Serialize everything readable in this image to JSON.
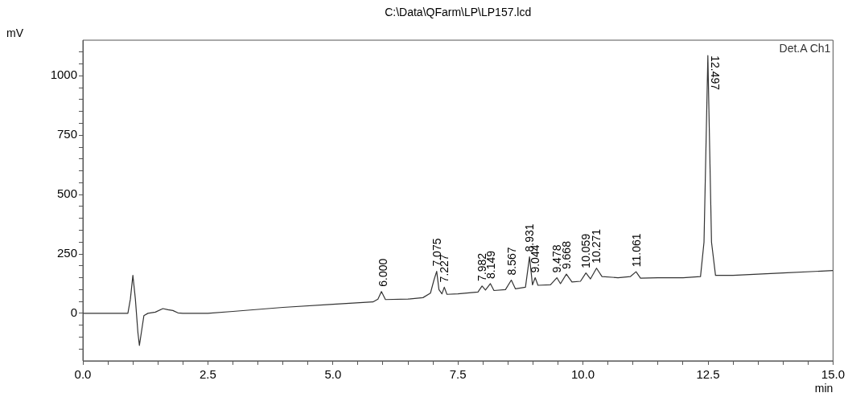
{
  "chart_data": {
    "type": "line",
    "title": "C:\\Data\\QFarm\\LP\\LP157.lcd",
    "xlabel": "min",
    "ylabel": "mV",
    "legend": "top right",
    "grid": false,
    "marker": "none",
    "line_style": "solid",
    "xlim": [
      0,
      15
    ],
    "xticks": [
      {
        "value": 0,
        "label": "0.0"
      },
      {
        "value": 0.5,
        "label": null
      },
      {
        "value": 1,
        "label": null
      },
      {
        "value": 1.5,
        "label": null
      },
      {
        "value": 2,
        "label": null
      },
      {
        "value": 2.5,
        "label": "2.5"
      },
      {
        "value": 3,
        "label": null
      },
      {
        "value": 3.5,
        "label": null
      },
      {
        "value": 4,
        "label": null
      },
      {
        "value": 4.5,
        "label": null
      },
      {
        "value": 5,
        "label": "5.0"
      },
      {
        "value": 5.5,
        "label": null
      },
      {
        "value": 6,
        "label": null
      },
      {
        "value": 6.5,
        "label": null
      },
      {
        "value": 7,
        "label": null
      },
      {
        "value": 7.5,
        "label": "7.5"
      },
      {
        "value": 8,
        "label": null
      },
      {
        "value": 8.5,
        "label": null
      },
      {
        "value": 9,
        "label": null
      },
      {
        "value": 9.5,
        "label": null
      },
      {
        "value": 10,
        "label": "10.0"
      },
      {
        "value": 10.5,
        "label": null
      },
      {
        "value": 11,
        "label": null
      },
      {
        "value": 11.5,
        "label": null
      },
      {
        "value": 12,
        "label": null
      },
      {
        "value": 12.5,
        "label": "12.5"
      },
      {
        "value": 13,
        "label": null
      },
      {
        "value": 13.5,
        "label": null
      },
      {
        "value": 14,
        "label": null
      },
      {
        "value": 14.5,
        "label": null
      },
      {
        "value": 15,
        "label": "15.0"
      }
    ],
    "ylim": [
      -200,
      1150
    ],
    "yticks": [
      {
        "value": -150,
        "label": null
      },
      {
        "value": -100,
        "label": null
      },
      {
        "value": -50,
        "label": null
      },
      0,
      {
        "value": 50,
        "label": null
      },
      {
        "value": 100,
        "label": null
      },
      {
        "value": 150,
        "label": null
      },
      {
        "value": 200,
        "label": null
      },
      250,
      {
        "value": 300,
        "label": null
      },
      {
        "value": 350,
        "label": null
      },
      {
        "value": 400,
        "label": null
      },
      {
        "value": 450,
        "label": null
      },
      500,
      {
        "value": 550,
        "label": null
      },
      {
        "value": 600,
        "label": null
      },
      {
        "value": 650,
        "label": null
      },
      {
        "value": 700,
        "label": null
      },
      750,
      {
        "value": 800,
        "label": null
      },
      {
        "value": 850,
        "label": null
      },
      {
        "value": 900,
        "label": null
      },
      {
        "value": 950,
        "label": null
      },
      1000,
      {
        "value": 1050,
        "label": null
      },
      {
        "value": 1100,
        "label": null
      }
    ],
    "series": [
      {
        "name": "Det.A Ch1",
        "color": "#333333",
        "x": [
          0,
          0.9,
          0.95,
          1.0,
          1.05,
          1.1,
          1.13,
          1.17,
          1.22,
          1.3,
          1.45,
          1.6,
          1.7,
          1.8,
          1.9,
          2.0,
          2.5,
          3.0,
          4.0,
          5.0,
          5.8,
          5.9,
          5.97,
          6.05,
          6.5,
          6.8,
          6.95,
          7.02,
          7.075,
          7.12,
          7.18,
          7.227,
          7.28,
          7.5,
          7.9,
          7.982,
          8.05,
          8.149,
          8.22,
          8.45,
          8.567,
          8.65,
          8.85,
          8.931,
          8.99,
          9.044,
          9.1,
          9.35,
          9.478,
          9.55,
          9.668,
          9.78,
          9.95,
          10.059,
          10.15,
          10.271,
          10.38,
          10.7,
          10.95,
          11.061,
          11.15,
          11.5,
          12.0,
          12.35,
          12.42,
          12.497,
          12.57,
          12.65,
          13.0,
          14.0,
          15.0
        ],
        "values": [
          0,
          0,
          60,
          160,
          60,
          -80,
          -135,
          -80,
          -10,
          0,
          5,
          20,
          15,
          12,
          2,
          0,
          0,
          8,
          25,
          38,
          48,
          60,
          92,
          58,
          60,
          66,
          85,
          140,
          177,
          100,
          82,
          110,
          80,
          82,
          90,
          115,
          98,
          125,
          96,
          100,
          140,
          103,
          110,
          238,
          120,
          150,
          118,
          120,
          150,
          125,
          165,
          132,
          135,
          170,
          145,
          190,
          155,
          150,
          155,
          175,
          148,
          150,
          150,
          155,
          300,
          1085,
          300,
          160,
          160,
          170,
          180
        ]
      }
    ],
    "annotations": [
      {
        "text": "6.000",
        "x": 6.0,
        "y": 92
      },
      {
        "text": "7.075",
        "x": 7.075,
        "y": 177
      },
      {
        "text": "7.227",
        "x": 7.227,
        "y": 110
      },
      {
        "text": "7.982",
        "x": 7.982,
        "y": 115
      },
      {
        "text": "8.149",
        "x": 8.149,
        "y": 125
      },
      {
        "text": "8.567",
        "x": 8.567,
        "y": 140
      },
      {
        "text": "8.931",
        "x": 8.931,
        "y": 238
      },
      {
        "text": "9.044",
        "x": 9.044,
        "y": 150
      },
      {
        "text": "9.478",
        "x": 9.478,
        "y": 150
      },
      {
        "text": "9.668",
        "x": 9.668,
        "y": 165
      },
      {
        "text": "10.059",
        "x": 10.059,
        "y": 170
      },
      {
        "text": "10.271",
        "x": 10.271,
        "y": 190
      },
      {
        "text": "11.061",
        "x": 11.061,
        "y": 175
      },
      {
        "text": "12.497",
        "x": 12.497,
        "y": 1085
      }
    ]
  }
}
